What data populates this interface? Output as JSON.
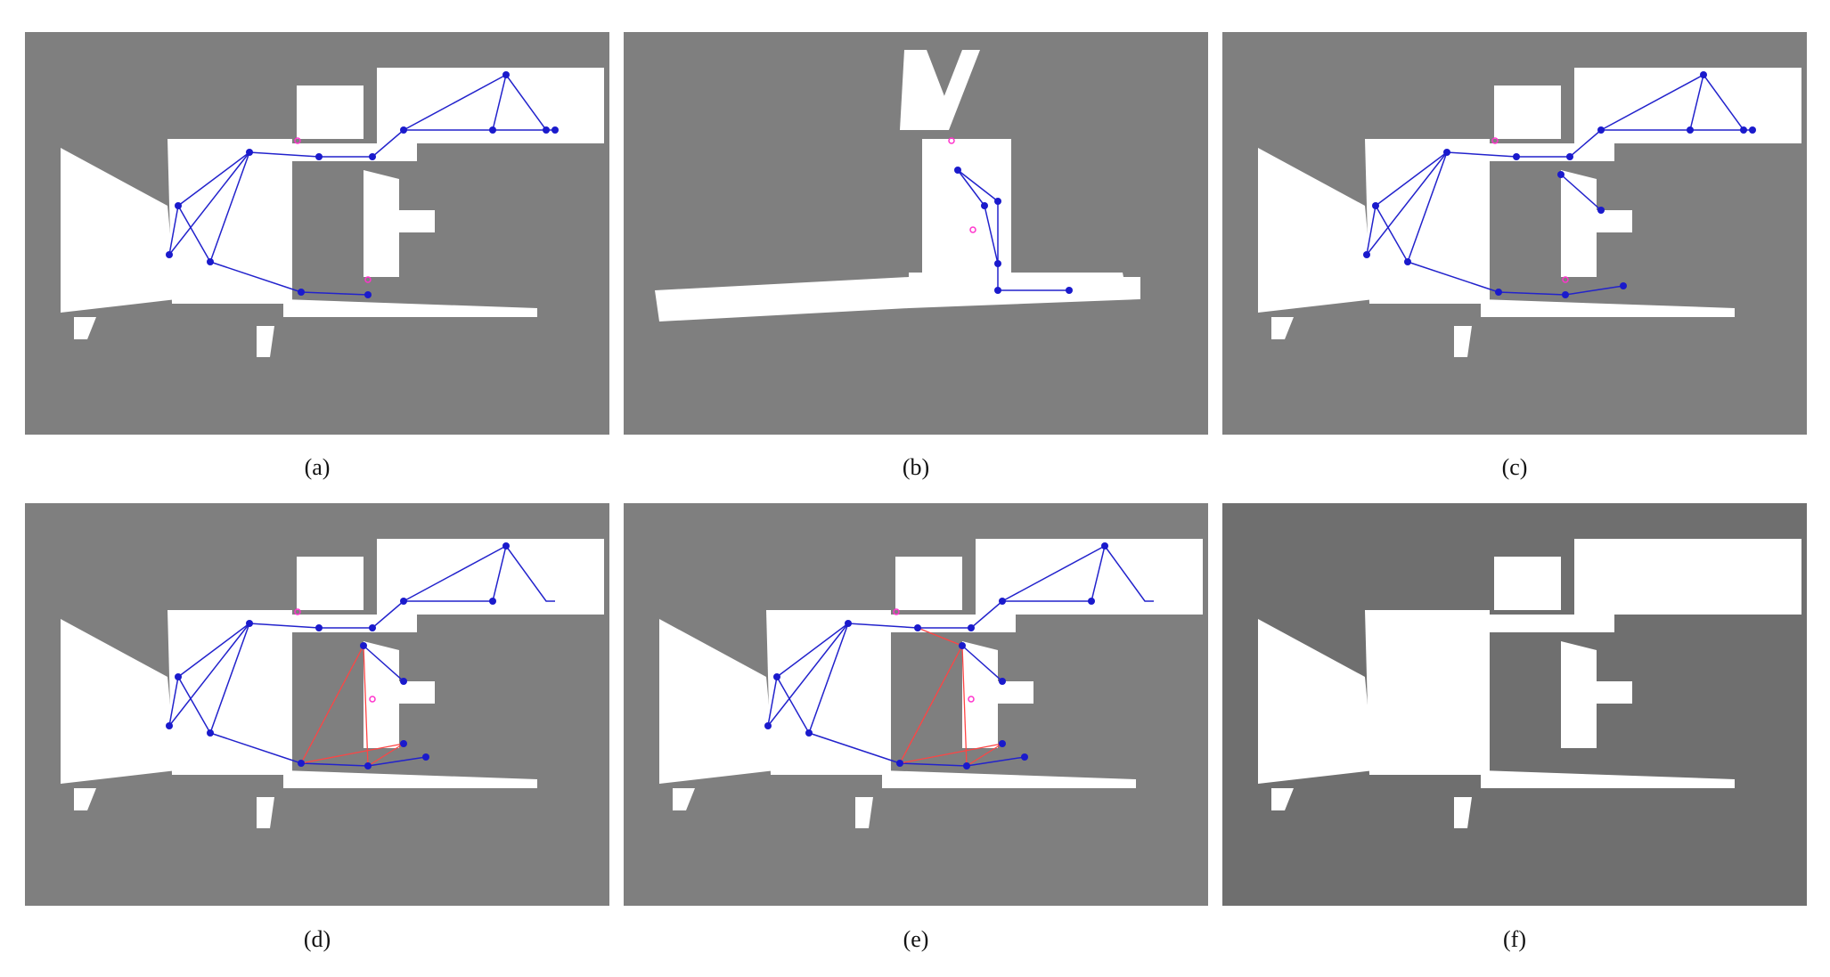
{
  "captions": [
    "(a)",
    "(b)",
    "(c)",
    "(d)",
    "(e)",
    "(f)"
  ],
  "colors": {
    "map_bg": "#7f7f7f",
    "map_bg_dark": "#6f6f6f",
    "free_space": "#ffffff",
    "graph_edge": "#2222cc",
    "graph_node": "#1a1acc",
    "loop_edge": "#ff4444",
    "marker": "#ff33cc"
  }
}
